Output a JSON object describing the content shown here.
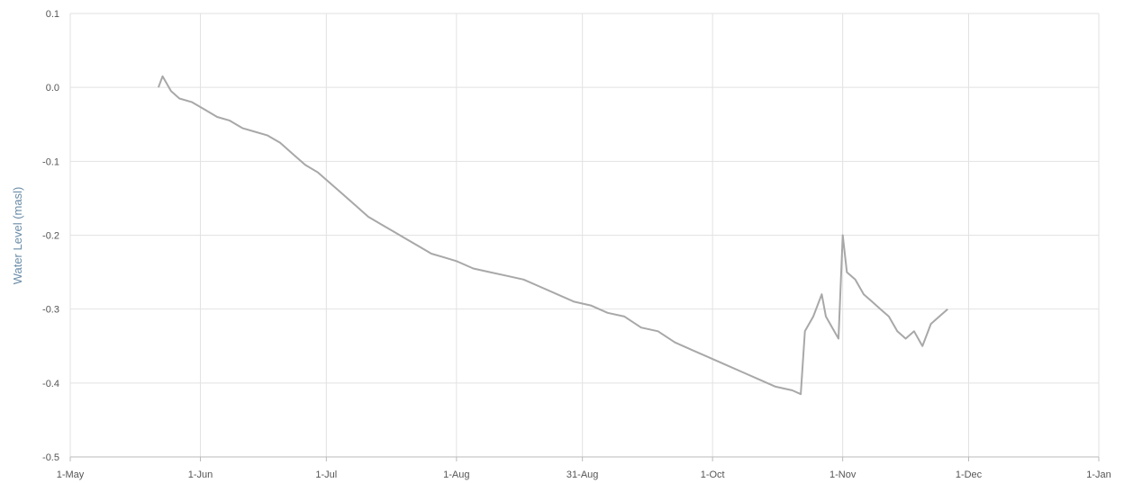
{
  "chart_data": {
    "type": "line",
    "title": "",
    "xlabel": "",
    "ylabel": "Water Level (masl)",
    "ylim": [
      -0.5,
      0.1
    ],
    "xlim": [
      "2023-05-01",
      "2024-01-01"
    ],
    "grid": true,
    "legend": "none",
    "y_ticks": [
      "0.1",
      "0.0",
      "-0.1",
      "-0.2",
      "-0.3",
      "-0.4",
      "-0.5"
    ],
    "x_ticks": [
      {
        "date": "2023-05-01",
        "label": "1-May"
      },
      {
        "date": "2023-06-01",
        "label": "1-Jun"
      },
      {
        "date": "2023-07-01",
        "label": "1-Jul"
      },
      {
        "date": "2023-08-01",
        "label": "1-Aug"
      },
      {
        "date": "2023-08-31",
        "label": "31-Aug"
      },
      {
        "date": "2023-10-01",
        "label": "1-Oct"
      },
      {
        "date": "2023-11-01",
        "label": "1-Nov"
      },
      {
        "date": "2023-12-01",
        "label": "1-Dec"
      },
      {
        "date": "2024-01-01",
        "label": "1-Jan"
      }
    ],
    "series": [
      {
        "color": "#a8a8a8",
        "points": [
          [
            "2023-05-22",
            0.0
          ],
          [
            "2023-05-23",
            0.015
          ],
          [
            "2023-05-25",
            -0.005
          ],
          [
            "2023-05-27",
            -0.015
          ],
          [
            "2023-05-30",
            -0.02
          ],
          [
            "2023-06-02",
            -0.03
          ],
          [
            "2023-06-05",
            -0.04
          ],
          [
            "2023-06-08",
            -0.045
          ],
          [
            "2023-06-11",
            -0.055
          ],
          [
            "2023-06-14",
            -0.06
          ],
          [
            "2023-06-17",
            -0.065
          ],
          [
            "2023-06-20",
            -0.075
          ],
          [
            "2023-06-23",
            -0.09
          ],
          [
            "2023-06-26",
            -0.105
          ],
          [
            "2023-06-29",
            -0.115
          ],
          [
            "2023-07-02",
            -0.13
          ],
          [
            "2023-07-05",
            -0.145
          ],
          [
            "2023-07-08",
            -0.16
          ],
          [
            "2023-07-11",
            -0.175
          ],
          [
            "2023-07-14",
            -0.185
          ],
          [
            "2023-07-17",
            -0.195
          ],
          [
            "2023-07-20",
            -0.205
          ],
          [
            "2023-07-23",
            -0.215
          ],
          [
            "2023-07-26",
            -0.225
          ],
          [
            "2023-07-29",
            -0.23
          ],
          [
            "2023-08-01",
            -0.235
          ],
          [
            "2023-08-05",
            -0.245
          ],
          [
            "2023-08-09",
            -0.25
          ],
          [
            "2023-08-13",
            -0.255
          ],
          [
            "2023-08-17",
            -0.26
          ],
          [
            "2023-08-21",
            -0.27
          ],
          [
            "2023-08-25",
            -0.28
          ],
          [
            "2023-08-29",
            -0.29
          ],
          [
            "2023-09-02",
            -0.295
          ],
          [
            "2023-09-06",
            -0.305
          ],
          [
            "2023-09-10",
            -0.31
          ],
          [
            "2023-09-14",
            -0.325
          ],
          [
            "2023-09-18",
            -0.33
          ],
          [
            "2023-09-22",
            -0.345
          ],
          [
            "2023-09-26",
            -0.355
          ],
          [
            "2023-09-30",
            -0.365
          ],
          [
            "2023-10-04",
            -0.375
          ],
          [
            "2023-10-08",
            -0.385
          ],
          [
            "2023-10-12",
            -0.395
          ],
          [
            "2023-10-16",
            -0.405
          ],
          [
            "2023-10-20",
            -0.41
          ],
          [
            "2023-10-22",
            -0.415
          ],
          [
            "2023-10-23",
            -0.33
          ],
          [
            "2023-10-25",
            -0.31
          ],
          [
            "2023-10-27",
            -0.28
          ],
          [
            "2023-10-28",
            -0.31
          ],
          [
            "2023-10-30",
            -0.33
          ],
          [
            "2023-10-31",
            -0.34
          ],
          [
            "2023-11-01",
            -0.2
          ],
          [
            "2023-11-02",
            -0.25
          ],
          [
            "2023-11-04",
            -0.26
          ],
          [
            "2023-11-06",
            -0.28
          ],
          [
            "2023-11-08",
            -0.29
          ],
          [
            "2023-11-10",
            -0.3
          ],
          [
            "2023-11-12",
            -0.31
          ],
          [
            "2023-11-14",
            -0.33
          ],
          [
            "2023-11-16",
            -0.34
          ],
          [
            "2023-11-18",
            -0.33
          ],
          [
            "2023-11-20",
            -0.35
          ],
          [
            "2023-11-22",
            -0.32
          ],
          [
            "2023-11-24",
            -0.31
          ],
          [
            "2023-11-26",
            -0.3
          ]
        ]
      }
    ]
  }
}
